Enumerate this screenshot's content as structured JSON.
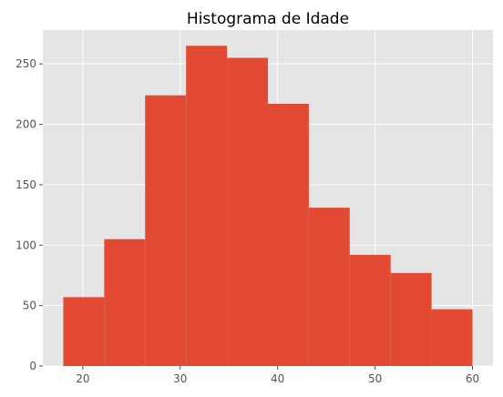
{
  "chart_data": {
    "type": "bar",
    "title": "Histograma de Idade",
    "xlabel": "",
    "ylabel": "",
    "bins": [
      {
        "start": 18.0,
        "end": 22.2,
        "count": 57
      },
      {
        "start": 22.2,
        "end": 26.4,
        "count": 105
      },
      {
        "start": 26.4,
        "end": 30.6,
        "count": 224
      },
      {
        "start": 30.6,
        "end": 34.8,
        "count": 265
      },
      {
        "start": 34.8,
        "end": 39.0,
        "count": 255
      },
      {
        "start": 39.0,
        "end": 43.2,
        "count": 217
      },
      {
        "start": 43.2,
        "end": 47.4,
        "count": 131
      },
      {
        "start": 47.4,
        "end": 51.6,
        "count": 92
      },
      {
        "start": 51.6,
        "end": 55.8,
        "count": 77
      },
      {
        "start": 55.8,
        "end": 60.0,
        "count": 47
      }
    ],
    "xlim": [
      15.9,
      62.1
    ],
    "ylim": [
      0,
      278
    ],
    "xticks": [
      "20",
      "30",
      "40",
      "50",
      "60"
    ],
    "yticks": [
      "0",
      "50",
      "100",
      "150",
      "200",
      "250"
    ],
    "grid": true,
    "colors": {
      "bar": "#e24a33",
      "background": "#e5e5e5",
      "grid": "#ffffff"
    }
  }
}
